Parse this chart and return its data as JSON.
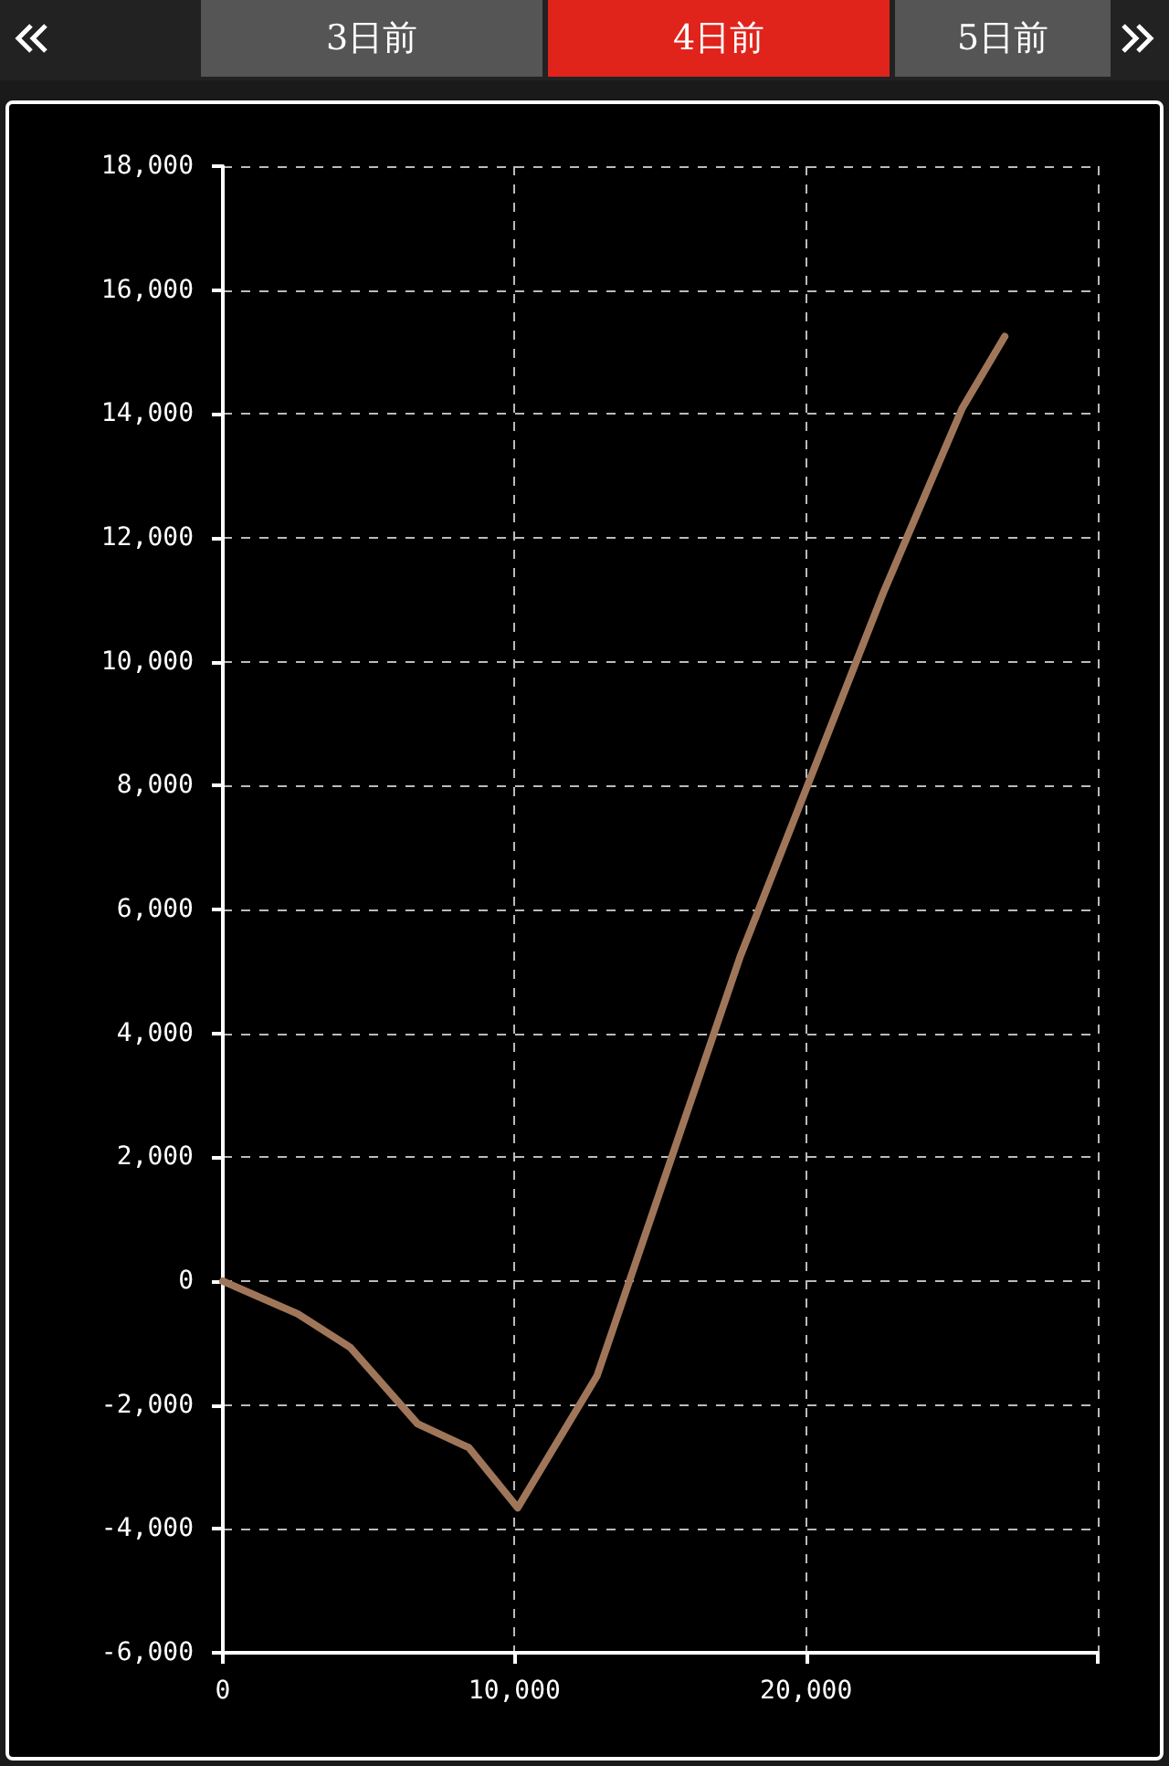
{
  "chart_data": {
    "type": "line",
    "annotations": [
      "3日前",
      "4日前",
      "5日前"
    ],
    "x": [
      0,
      2570,
      4370,
      6670,
      8440,
      10110,
      12830,
      17740,
      22670,
      25350,
      26810
    ],
    "series": [
      {
        "color": "#a0765a",
        "values": [
          0,
          -530,
          -1070,
          -2300,
          -2690,
          -3660,
          -1530,
          5240,
          11140,
          14090,
          15250
        ]
      }
    ],
    "xlim": [
      0,
      30000
    ],
    "xticks": [
      0,
      {
        "value": 10000,
        "label": "10,000"
      },
      {
        "value": 20000,
        "label": "20,000"
      },
      {
        "value": 30000,
        "label": null
      }
    ],
    "ylim": [
      -6000,
      18000
    ],
    "yticks": [
      {
        "value": -6000,
        "label": "-6,000"
      },
      {
        "value": -4000,
        "label": "-4,000"
      },
      {
        "value": -2000,
        "label": "-2,000"
      },
      0,
      {
        "value": 2000,
        "label": "2,000"
      },
      {
        "value": 4000,
        "label": "4,000"
      },
      {
        "value": 6000,
        "label": "6,000"
      },
      {
        "value": 8000,
        "label": "8,000"
      },
      {
        "value": 10000,
        "label": "10,000"
      },
      {
        "value": 12000,
        "label": "12,000"
      },
      {
        "value": 14000,
        "label": "14,000"
      },
      {
        "value": 16000,
        "label": "16,000"
      },
      {
        "value": 18000,
        "label": "18,000"
      }
    ],
    "grid": true,
    "marker": "none",
    "line_style": "solid"
  }
}
